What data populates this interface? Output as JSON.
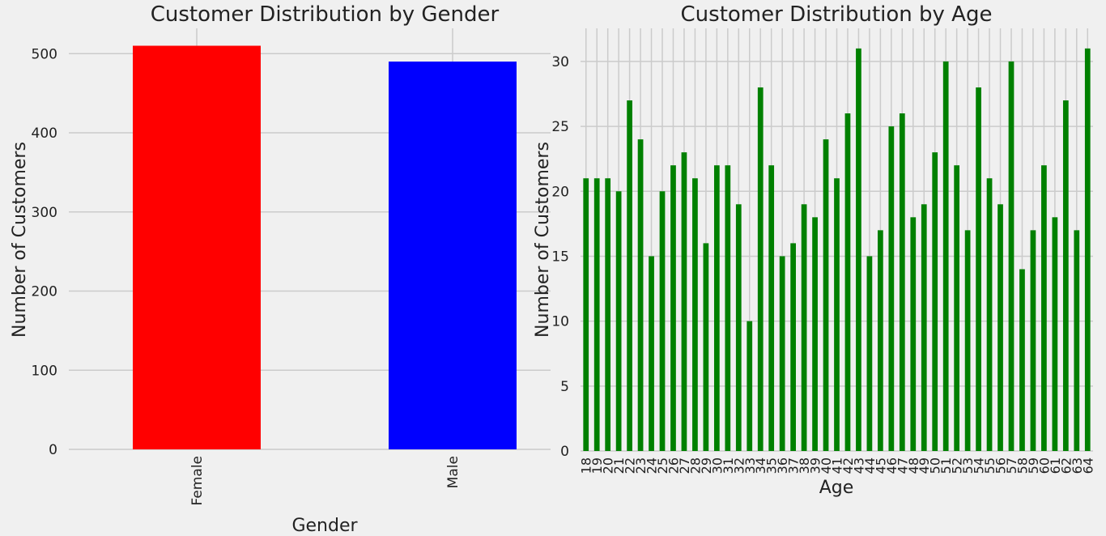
{
  "chart_data": [
    {
      "type": "bar",
      "title": "Customer Distribution by Gender",
      "xlabel": "Gender",
      "ylabel": "Number of Customers",
      "categories": [
        "Female",
        "Male"
      ],
      "values": [
        510,
        490
      ],
      "colors": [
        "#ff0000",
        "#0000ff"
      ],
      "ylim": [
        0,
        532
      ],
      "yticks": [
        0,
        100,
        200,
        300,
        400,
        500
      ],
      "grid": true,
      "tick_label_rotation": "vertical"
    },
    {
      "type": "bar",
      "title": "Customer Distribution by Age",
      "xlabel": "Age",
      "ylabel": "Number of Customers",
      "categories": [
        "18",
        "19",
        "20",
        "21",
        "22",
        "23",
        "24",
        "25",
        "26",
        "27",
        "28",
        "29",
        "30",
        "31",
        "32",
        "33",
        "34",
        "35",
        "36",
        "37",
        "38",
        "39",
        "40",
        "41",
        "42",
        "43",
        "44",
        "45",
        "46",
        "47",
        "48",
        "49",
        "50",
        "51",
        "52",
        "53",
        "54",
        "55",
        "56",
        "57",
        "58",
        "59",
        "60",
        "61",
        "62",
        "63",
        "64"
      ],
      "values": [
        21,
        21,
        21,
        20,
        27,
        24,
        15,
        20,
        22,
        23,
        21,
        16,
        22,
        22,
        19,
        10,
        28,
        22,
        15,
        16,
        19,
        18,
        24,
        21,
        26,
        31,
        15,
        17,
        25,
        26,
        18,
        19,
        23,
        30,
        22,
        17,
        28,
        21,
        19,
        30,
        14,
        17,
        22,
        18,
        27,
        17,
        31
      ],
      "colors": [
        "#008000"
      ],
      "ylim": [
        0,
        32.55
      ],
      "yticks": [
        0,
        5,
        10,
        15,
        20,
        25,
        30
      ],
      "grid": true,
      "tick_label_rotation": "vertical"
    }
  ]
}
